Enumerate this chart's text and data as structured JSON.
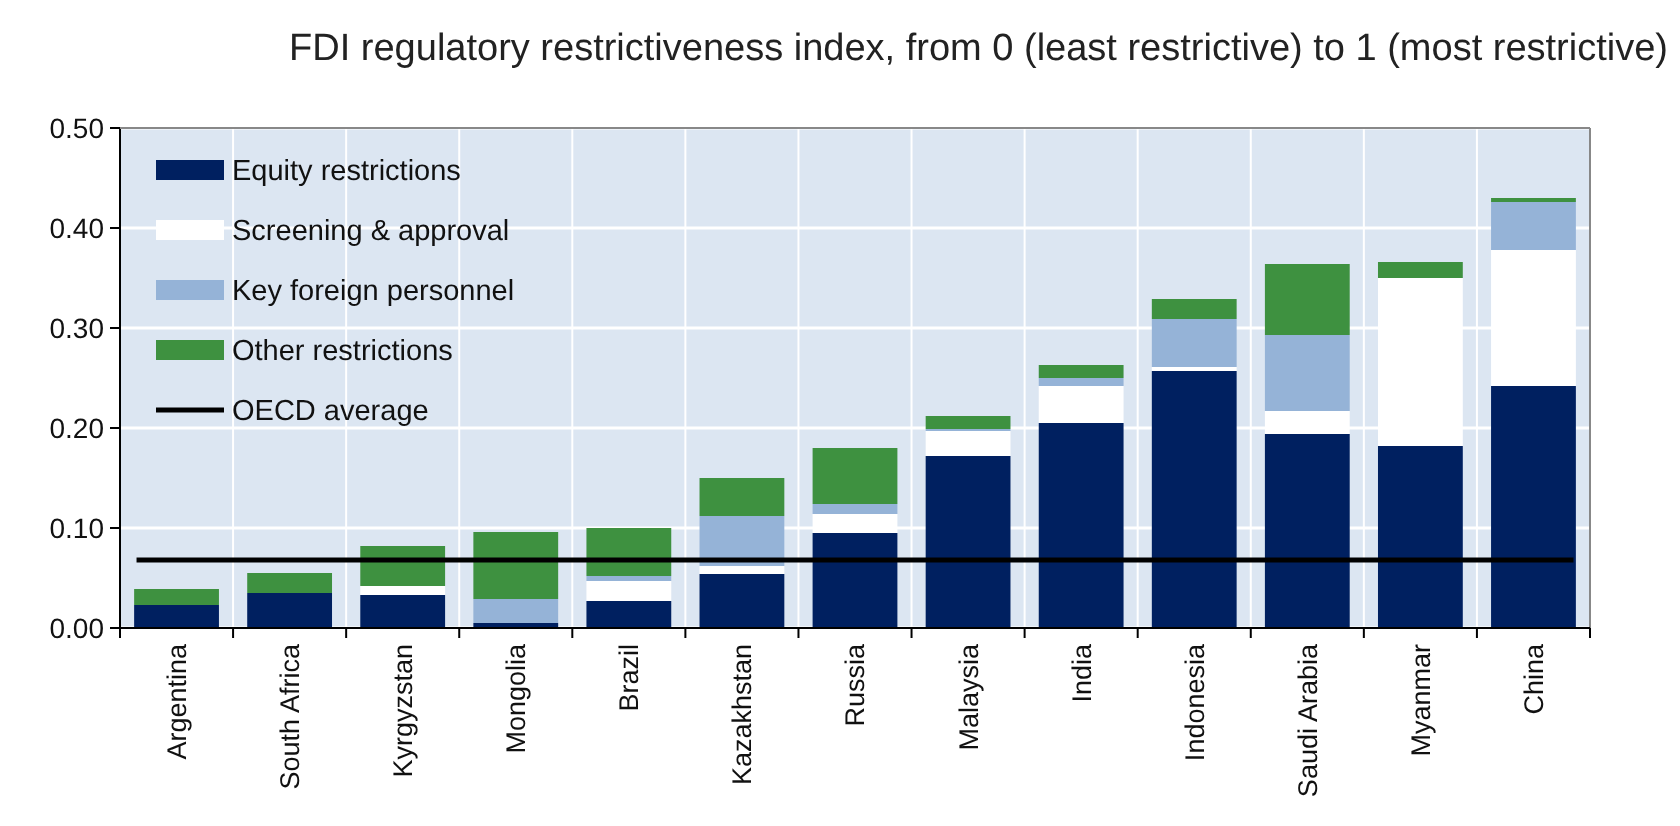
{
  "chart_data": {
    "type": "bar",
    "title": "FDI regulatory restrictiveness index, from 0 (least restrictive) to 1 (most restrictive)",
    "categories": [
      "Argentina",
      "South Africa",
      "Kyrgyzstan",
      "Mongolia",
      "Brazil",
      "Kazakhstan",
      "Russia",
      "Malaysia",
      "India",
      "Indonesia",
      "Saudi Arabia",
      "Myanmar",
      "China"
    ],
    "stacked": true,
    "series": [
      {
        "name": "Equity restrictions",
        "color": "#002060",
        "values": [
          0.023,
          0.035,
          0.033,
          0.005,
          0.027,
          0.054,
          0.095,
          0.172,
          0.205,
          0.257,
          0.194,
          0.182,
          0.242
        ]
      },
      {
        "name": "Screening & approval",
        "color": "#ffffff",
        "values": [
          0,
          0,
          0.009,
          0,
          0.02,
          0.008,
          0.019,
          0.025,
          0.037,
          0.004,
          0.023,
          0.168,
          0.136
        ]
      },
      {
        "name": "Key foreign personnel",
        "color": "#95b3d7",
        "values": [
          0,
          0,
          0,
          0.024,
          0.005,
          0.05,
          0.01,
          0.002,
          0.008,
          0.048,
          0.076,
          0,
          0.048
        ]
      },
      {
        "name": "Other restrictions",
        "color": "#3e9140",
        "values": [
          0.016,
          0.02,
          0.04,
          0.067,
          0.048,
          0.038,
          0.056,
          0.013,
          0.013,
          0.02,
          0.071,
          0.016,
          0.004
        ]
      }
    ],
    "ref_lines": [
      {
        "axis": "y",
        "value": 0.068,
        "label": "OECD average",
        "color": "#000000"
      }
    ],
    "ylim": [
      0,
      0.5
    ],
    "yticks": [
      {
        "value": 0,
        "label": "0.00"
      },
      {
        "value": 0.1,
        "label": "0.10"
      },
      {
        "value": 0.2,
        "label": "0.20"
      },
      {
        "value": 0.3,
        "label": "0.30"
      },
      {
        "value": 0.4,
        "label": "0.40"
      },
      {
        "value": 0.5,
        "label": "0.50"
      }
    ],
    "grid": true,
    "legend": "top left"
  }
}
